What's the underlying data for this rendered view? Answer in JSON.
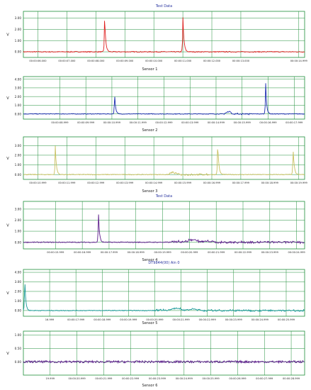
{
  "colors": {
    "background": "#ffffff",
    "grid": "#1f8f3a",
    "axis": "#555555",
    "title_text": "#2a35a0",
    "label_text": "#222222"
  },
  "chart_data": [
    {
      "type": "line",
      "title": "Test Data",
      "caption": "Sensor 1",
      "ylabel": "V",
      "ylim": [
        -0.5,
        3.6
      ],
      "yticks": [
        "0.00",
        "1.00",
        "2.00",
        "3.00"
      ],
      "ytick_values": [
        0,
        1,
        2,
        3
      ],
      "xlim": [
        5.5,
        15.2
      ],
      "xticks": [
        "00:00:06.000",
        "00:00:07.000",
        "00:00:08.000",
        "00:00:09.000",
        "00:00:10.000",
        "00:00:11.000",
        "00:00:12.000",
        "00:00:13.000",
        "00:00:14.999"
      ],
      "xtick_values": [
        6,
        7,
        8,
        9,
        10,
        11,
        12,
        13,
        14.999
      ],
      "series": [
        {
          "color": "#e02020",
          "baseline": 0.0,
          "spikes": [
            [
              8.3,
              3.3
            ],
            [
              11.0,
              3.3
            ]
          ],
          "bumps": []
        }
      ]
    },
    {
      "type": "line",
      "title": "",
      "caption": "Sensor 2",
      "ylabel": "V",
      "ylim": [
        -0.6,
        4.3
      ],
      "yticks": [
        "0.00",
        "1.00",
        "2.00",
        "3.00",
        "4.00"
      ],
      "ytick_values": [
        0,
        1,
        2,
        3,
        4
      ],
      "xlim": [
        7.6,
        18.4
      ],
      "xticks": [
        "00:00:08.999",
        "00:00:09.999",
        "00:00:10.999",
        "00:00:11.999",
        "00:00:12.999",
        "00:00:13.999",
        "00:00:14.999",
        "00:00:15.999",
        "00:00:16.999",
        "00:00:17.999"
      ],
      "xtick_values": [
        8.999,
        9.999,
        10.999,
        11.999,
        12.999,
        13.999,
        14.999,
        15.999,
        16.999,
        17.999
      ],
      "series": [
        {
          "color": "#1a2ab0",
          "baseline": 0.0,
          "spikes": [
            [
              11.1,
              2.6
            ],
            [
              16.9,
              4.0
            ]
          ],
          "bumps": [
            [
              15.3,
              16.3,
              0.3
            ]
          ]
        }
      ]
    },
    {
      "type": "line",
      "title": "",
      "caption": "Sensor 3",
      "ylabel": "V",
      "ylim": [
        -0.5,
        3.9
      ],
      "yticks": [
        "0.00",
        "1.00",
        "2.00",
        "3.00"
      ],
      "ytick_values": [
        0,
        1,
        2,
        3
      ],
      "xlim": [
        10.5,
        20.2
      ],
      "xticks": [
        "00:00:10.999",
        "00:00:11.999",
        "00:00:12.999",
        "00:00:13.999",
        "00:00:14.999",
        "00:00:15.999",
        "00:00:16.999",
        "00:00:17.999",
        "00:00:18.999",
        "00:00:19.999"
      ],
      "xtick_values": [
        10.999,
        11.999,
        12.999,
        13.999,
        14.999,
        15.999,
        16.999,
        17.999,
        18.999,
        19.999
      ],
      "series": [
        {
          "color": "#c8c060",
          "baseline": 0.0,
          "spikes": [
            [
              11.6,
              3.0
            ],
            [
              17.2,
              3.5
            ],
            [
              19.8,
              3.0
            ]
          ],
          "bumps": [
            [
              15.5,
              16.9,
              0.3
            ]
          ]
        }
      ]
    },
    {
      "type": "line",
      "title": "Test Data",
      "caption": "Sensor 4",
      "ylabel": "V",
      "ylim": [
        -0.6,
        3.7
      ],
      "yticks": [
        "0.00",
        "1.00",
        "2.00",
        "3.00"
      ],
      "ytick_values": [
        0,
        1,
        2,
        3
      ],
      "xlim": [
        14.8,
        25.3
      ],
      "xticks": [
        "00:00:15.999",
        "00:00:16.999",
        "00:00:17.999",
        "00:00:18.999",
        "00:00:19.999",
        "00:00:20.999",
        "00:00:21.999",
        "00:00:22.999",
        "00:00:23.999",
        "00:00:24.999"
      ],
      "xtick_values": [
        15.999,
        16.999,
        17.999,
        18.999,
        19.999,
        20.999,
        21.999,
        22.999,
        23.999,
        24.999
      ],
      "series": [
        {
          "color": "#5a1a8a",
          "baseline": 0.0,
          "spikes": [
            [
              17.6,
              3.0
            ]
          ],
          "bumps": [
            [
              20.3,
              25.3,
              0.25
            ]
          ]
        }
      ]
    },
    {
      "type": "line",
      "title": "DT9844(00) Ain 0",
      "caption": "Sensor 5",
      "ylabel": "V",
      "ylim": [
        -0.6,
        4.3
      ],
      "yticks": [
        "0.00",
        "1.00",
        "2.00",
        "3.00",
        "4.00"
      ],
      "ytick_values": [
        0,
        1,
        2,
        3,
        4
      ],
      "xlim": [
        16.0,
        26.7
      ],
      "xticks": [
        "16.999",
        "00:00:17.999",
        "00:00:18.999",
        "00:00:19.999",
        "00:00:20.999",
        "00:00:21.999",
        "00:00:22.999",
        "00:00:23.999",
        "00:00:24.999",
        "00:00:25.999"
      ],
      "xtick_values": [
        16.999,
        17.999,
        18.999,
        19.999,
        20.999,
        21.999,
        22.999,
        23.999,
        24.999,
        25.999
      ],
      "series": [
        {
          "color": "#1a9a9a",
          "baseline": 0.0,
          "spikes": [
            [
              16.05,
              3.8
            ]
          ],
          "bumps": [
            [
              21.0,
              26.7,
              0.25
            ]
          ]
        }
      ]
    },
    {
      "type": "line",
      "title": "",
      "caption": "Sensor 6",
      "ylabel": "V",
      "ylim": [
        -0.5,
        1.15
      ],
      "yticks": [
        "0.00",
        "0.50",
        "1.00"
      ],
      "ytick_values": [
        0,
        0.5,
        1
      ],
      "xlim": [
        19.0,
        29.5
      ],
      "xticks": [
        "19.999",
        "00:00:20.999",
        "00:00:21.999",
        "00:00:22.999",
        "00:00:23.999",
        "00:00:24.999",
        "00:00:25.999",
        "00:00:26.999",
        "00:00:27.999",
        "00:00:28.999"
      ],
      "xtick_values": [
        19.999,
        20.999,
        21.999,
        22.999,
        23.999,
        24.999,
        25.999,
        26.999,
        27.999,
        28.999
      ],
      "series": [
        {
          "color": "#5a1a8a",
          "baseline": 0.0,
          "spikes": [],
          "bumps": []
        }
      ]
    }
  ]
}
